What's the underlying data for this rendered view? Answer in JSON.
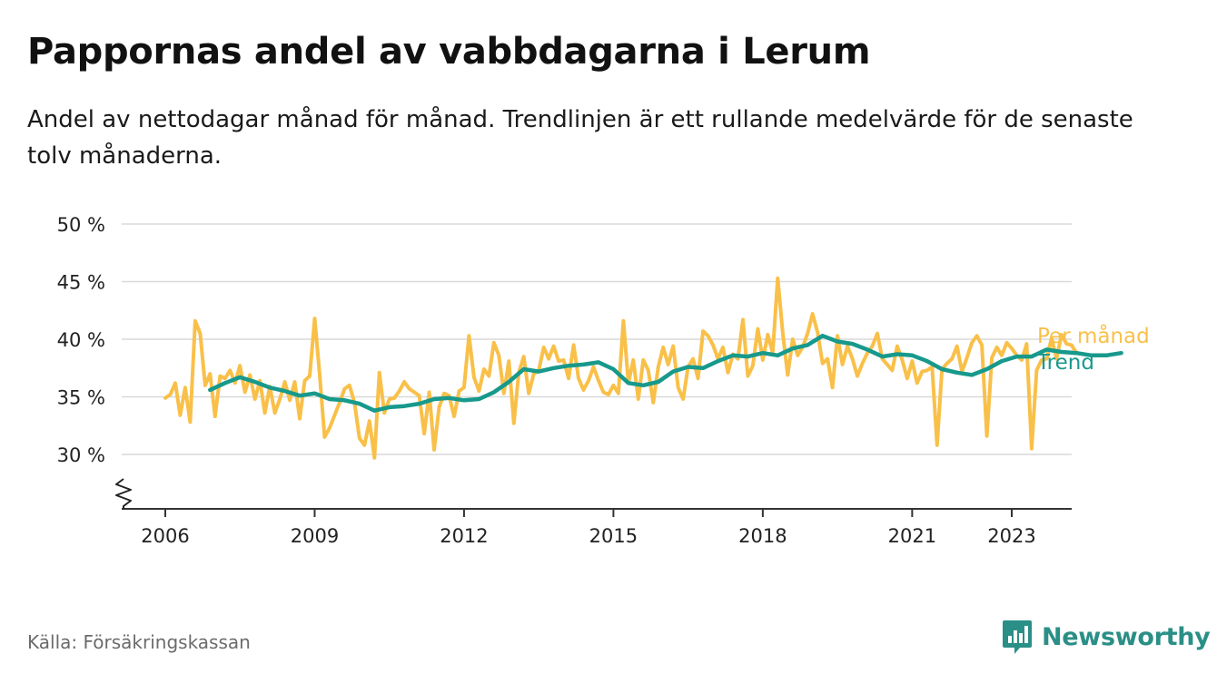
{
  "title": "Pappornas andel av vabbdagarna i Lerum",
  "subtitle": "Andel av nettodagar månad för månad. Trendlinjen är ett rullande medelvärde för de senaste tolv månaderna.",
  "source": "Källa: Försäkringskassan",
  "brand": {
    "name": "Newsworthy",
    "color": "#2a8f86",
    "icon": "newsworthy-logo-icon"
  },
  "chart_data": {
    "type": "line",
    "ylim": [
      25,
      50
    ],
    "xlim": [
      2006,
      2023.5
    ],
    "y_ticks": [
      {
        "value": 30,
        "label": "30 %"
      },
      {
        "value": 35,
        "label": "35 %"
      },
      {
        "value": 40,
        "label": "40 %"
      },
      {
        "value": 45,
        "label": "45 %"
      },
      {
        "value": 50,
        "label": "50 %"
      }
    ],
    "x_ticks": [
      {
        "value": 2006,
        "label": "2006"
      },
      {
        "value": 2009,
        "label": "2009"
      },
      {
        "value": 2012,
        "label": "2012"
      },
      {
        "value": 2015,
        "label": "2015"
      },
      {
        "value": 2018,
        "label": "2018"
      },
      {
        "value": 2021,
        "label": "2021"
      },
      {
        "value": 2023,
        "label": "2023"
      }
    ],
    "grid": true,
    "axis_break": true,
    "series": [
      {
        "name": "Per månad",
        "color": "#f9c049",
        "points": [
          [
            2006.0,
            34.9
          ],
          [
            2006.1,
            35.2
          ],
          [
            2006.2,
            36.2
          ],
          [
            2006.3,
            33.4
          ],
          [
            2006.4,
            35.8
          ],
          [
            2006.5,
            32.8
          ],
          [
            2006.6,
            41.6
          ],
          [
            2006.7,
            40.5
          ],
          [
            2006.8,
            36.0
          ],
          [
            2006.9,
            37.0
          ],
          [
            2007.0,
            33.3
          ],
          [
            2007.1,
            36.8
          ],
          [
            2007.2,
            36.6
          ],
          [
            2007.3,
            37.3
          ],
          [
            2007.4,
            36.2
          ],
          [
            2007.5,
            37.7
          ],
          [
            2007.6,
            35.4
          ],
          [
            2007.7,
            36.9
          ],
          [
            2007.8,
            34.8
          ],
          [
            2007.9,
            36.4
          ],
          [
            2008.0,
            33.6
          ],
          [
            2008.1,
            35.9
          ],
          [
            2008.2,
            33.6
          ],
          [
            2008.3,
            34.8
          ],
          [
            2008.4,
            36.3
          ],
          [
            2008.5,
            34.7
          ],
          [
            2008.6,
            36.3
          ],
          [
            2008.7,
            33.1
          ],
          [
            2008.8,
            36.4
          ],
          [
            2008.9,
            36.8
          ],
          [
            2009.0,
            41.8
          ],
          [
            2009.1,
            36.9
          ],
          [
            2009.2,
            31.5
          ],
          [
            2009.3,
            32.3
          ],
          [
            2009.4,
            33.4
          ],
          [
            2009.5,
            34.5
          ],
          [
            2009.6,
            35.7
          ],
          [
            2009.7,
            36.0
          ],
          [
            2009.8,
            34.5
          ],
          [
            2009.9,
            31.4
          ],
          [
            2010.0,
            30.8
          ],
          [
            2010.1,
            32.9
          ],
          [
            2010.2,
            29.7
          ],
          [
            2010.3,
            37.1
          ],
          [
            2010.4,
            33.6
          ],
          [
            2010.5,
            34.8
          ],
          [
            2010.6,
            34.9
          ],
          [
            2010.7,
            35.5
          ],
          [
            2010.8,
            36.3
          ],
          [
            2010.9,
            35.7
          ],
          [
            2011.0,
            35.4
          ],
          [
            2011.1,
            35.1
          ],
          [
            2011.2,
            31.8
          ],
          [
            2011.3,
            35.4
          ],
          [
            2011.4,
            30.4
          ],
          [
            2011.5,
            34.1
          ],
          [
            2011.6,
            35.3
          ],
          [
            2011.7,
            35.1
          ],
          [
            2011.8,
            33.3
          ],
          [
            2011.9,
            35.5
          ],
          [
            2012.0,
            35.8
          ],
          [
            2012.1,
            40.3
          ],
          [
            2012.2,
            36.7
          ],
          [
            2012.3,
            35.5
          ],
          [
            2012.4,
            37.4
          ],
          [
            2012.5,
            36.8
          ],
          [
            2012.6,
            39.7
          ],
          [
            2012.7,
            38.6
          ],
          [
            2012.8,
            35.3
          ],
          [
            2012.9,
            38.1
          ],
          [
            2013.0,
            32.7
          ],
          [
            2013.1,
            37.1
          ],
          [
            2013.2,
            38.5
          ],
          [
            2013.3,
            35.3
          ],
          [
            2013.4,
            37.0
          ],
          [
            2013.5,
            37.3
          ],
          [
            2013.6,
            39.3
          ],
          [
            2013.7,
            38.3
          ],
          [
            2013.8,
            39.4
          ],
          [
            2013.9,
            38.1
          ],
          [
            2014.0,
            38.2
          ],
          [
            2014.1,
            36.6
          ],
          [
            2014.2,
            39.5
          ],
          [
            2014.3,
            36.6
          ],
          [
            2014.4,
            35.6
          ],
          [
            2014.5,
            36.4
          ],
          [
            2014.6,
            37.6
          ],
          [
            2014.7,
            36.4
          ],
          [
            2014.8,
            35.4
          ],
          [
            2014.9,
            35.2
          ],
          [
            2015.0,
            36.0
          ],
          [
            2015.1,
            35.3
          ],
          [
            2015.2,
            41.6
          ],
          [
            2015.3,
            36.2
          ],
          [
            2015.4,
            38.2
          ],
          [
            2015.5,
            34.8
          ],
          [
            2015.6,
            38.2
          ],
          [
            2015.7,
            37.3
          ],
          [
            2015.8,
            34.5
          ],
          [
            2015.9,
            37.6
          ],
          [
            2016.0,
            39.3
          ],
          [
            2016.1,
            37.8
          ],
          [
            2016.2,
            39.4
          ],
          [
            2016.3,
            35.8
          ],
          [
            2016.4,
            34.8
          ],
          [
            2016.5,
            37.6
          ],
          [
            2016.6,
            38.3
          ],
          [
            2016.7,
            36.6
          ],
          [
            2016.8,
            40.7
          ],
          [
            2016.9,
            40.3
          ],
          [
            2017.0,
            39.5
          ],
          [
            2017.1,
            38.3
          ],
          [
            2017.2,
            39.3
          ],
          [
            2017.3,
            37.1
          ],
          [
            2017.4,
            38.7
          ],
          [
            2017.5,
            38.3
          ],
          [
            2017.6,
            41.7
          ],
          [
            2017.7,
            36.8
          ],
          [
            2017.8,
            37.7
          ],
          [
            2017.9,
            40.9
          ],
          [
            2018.0,
            38.2
          ],
          [
            2018.1,
            40.4
          ],
          [
            2018.2,
            38.8
          ],
          [
            2018.3,
            45.3
          ],
          [
            2018.4,
            40.6
          ],
          [
            2018.5,
            36.9
          ],
          [
            2018.6,
            40.0
          ],
          [
            2018.7,
            38.6
          ],
          [
            2018.8,
            39.3
          ],
          [
            2018.9,
            40.5
          ],
          [
            2019.0,
            42.2
          ],
          [
            2019.1,
            40.6
          ],
          [
            2019.2,
            37.9
          ],
          [
            2019.3,
            38.3
          ],
          [
            2019.4,
            35.8
          ],
          [
            2019.5,
            40.3
          ],
          [
            2019.6,
            37.8
          ],
          [
            2019.7,
            39.4
          ],
          [
            2019.8,
            38.3
          ],
          [
            2019.9,
            36.8
          ],
          [
            2020.0,
            37.9
          ],
          [
            2020.1,
            38.8
          ],
          [
            2020.2,
            39.4
          ],
          [
            2020.3,
            40.5
          ],
          [
            2020.4,
            38.3
          ],
          [
            2020.5,
            37.8
          ],
          [
            2020.6,
            37.3
          ],
          [
            2020.7,
            39.4
          ],
          [
            2020.8,
            38.2
          ],
          [
            2020.9,
            36.6
          ],
          [
            2021.0,
            38.1
          ],
          [
            2021.1,
            36.2
          ],
          [
            2021.2,
            37.2
          ],
          [
            2021.3,
            37.3
          ],
          [
            2021.4,
            37.6
          ],
          [
            2021.5,
            30.8
          ],
          [
            2021.6,
            37.4
          ],
          [
            2021.7,
            37.9
          ],
          [
            2021.8,
            38.3
          ],
          [
            2021.9,
            39.4
          ],
          [
            2022.0,
            37.2
          ],
          [
            2022.1,
            38.4
          ],
          [
            2022.2,
            39.7
          ],
          [
            2022.3,
            40.3
          ],
          [
            2022.4,
            39.5
          ],
          [
            2022.5,
            31.6
          ],
          [
            2022.6,
            38.4
          ],
          [
            2022.7,
            39.3
          ],
          [
            2022.8,
            38.6
          ],
          [
            2022.9,
            39.7
          ],
          [
            2023.0,
            39.2
          ],
          [
            2023.1,
            38.6
          ],
          [
            2023.2,
            38.2
          ],
          [
            2023.3,
            39.6
          ],
          [
            2023.4,
            30.5
          ],
          [
            2023.5,
            37.3
          ],
          [
            2023.6,
            38.2
          ],
          [
            2023.7,
            38.3
          ],
          [
            2023.8,
            40.1
          ],
          [
            2023.9,
            38.3
          ],
          [
            2024.0,
            40.4
          ],
          [
            2024.1,
            39.6
          ],
          [
            2024.2,
            39.5
          ],
          [
            2024.3,
            38.8
          ]
        ]
      },
      {
        "name": "Trend",
        "color": "#17998c",
        "points": [
          [
            2006.9,
            35.6
          ],
          [
            2007.2,
            36.2
          ],
          [
            2007.5,
            36.7
          ],
          [
            2007.8,
            36.3
          ],
          [
            2008.1,
            35.8
          ],
          [
            2008.4,
            35.5
          ],
          [
            2008.7,
            35.1
          ],
          [
            2009.0,
            35.3
          ],
          [
            2009.3,
            34.8
          ],
          [
            2009.6,
            34.7
          ],
          [
            2009.9,
            34.4
          ],
          [
            2010.2,
            33.8
          ],
          [
            2010.5,
            34.1
          ],
          [
            2010.8,
            34.2
          ],
          [
            2011.1,
            34.4
          ],
          [
            2011.4,
            34.8
          ],
          [
            2011.7,
            34.9
          ],
          [
            2012.0,
            34.7
          ],
          [
            2012.3,
            34.8
          ],
          [
            2012.6,
            35.4
          ],
          [
            2012.9,
            36.3
          ],
          [
            2013.2,
            37.4
          ],
          [
            2013.5,
            37.2
          ],
          [
            2013.8,
            37.5
          ],
          [
            2014.1,
            37.7
          ],
          [
            2014.4,
            37.8
          ],
          [
            2014.7,
            38.0
          ],
          [
            2015.0,
            37.4
          ],
          [
            2015.3,
            36.2
          ],
          [
            2015.6,
            36.0
          ],
          [
            2015.9,
            36.3
          ],
          [
            2016.2,
            37.2
          ],
          [
            2016.5,
            37.6
          ],
          [
            2016.8,
            37.5
          ],
          [
            2017.1,
            38.1
          ],
          [
            2017.4,
            38.6
          ],
          [
            2017.7,
            38.5
          ],
          [
            2018.0,
            38.8
          ],
          [
            2018.3,
            38.6
          ],
          [
            2018.6,
            39.2
          ],
          [
            2018.9,
            39.5
          ],
          [
            2019.2,
            40.3
          ],
          [
            2019.5,
            39.8
          ],
          [
            2019.8,
            39.6
          ],
          [
            2020.1,
            39.1
          ],
          [
            2020.4,
            38.5
          ],
          [
            2020.7,
            38.7
          ],
          [
            2021.0,
            38.6
          ],
          [
            2021.3,
            38.1
          ],
          [
            2021.6,
            37.4
          ],
          [
            2021.9,
            37.1
          ],
          [
            2022.2,
            36.9
          ],
          [
            2022.5,
            37.4
          ],
          [
            2022.8,
            38.1
          ],
          [
            2023.1,
            38.5
          ],
          [
            2023.4,
            38.5
          ],
          [
            2023.7,
            39.1
          ],
          [
            2024.0,
            38.9
          ],
          [
            2024.3,
            38.8
          ],
          [
            2024.6,
            38.6
          ],
          [
            2024.9,
            38.6
          ],
          [
            2025.2,
            38.8
          ]
        ]
      }
    ]
  }
}
